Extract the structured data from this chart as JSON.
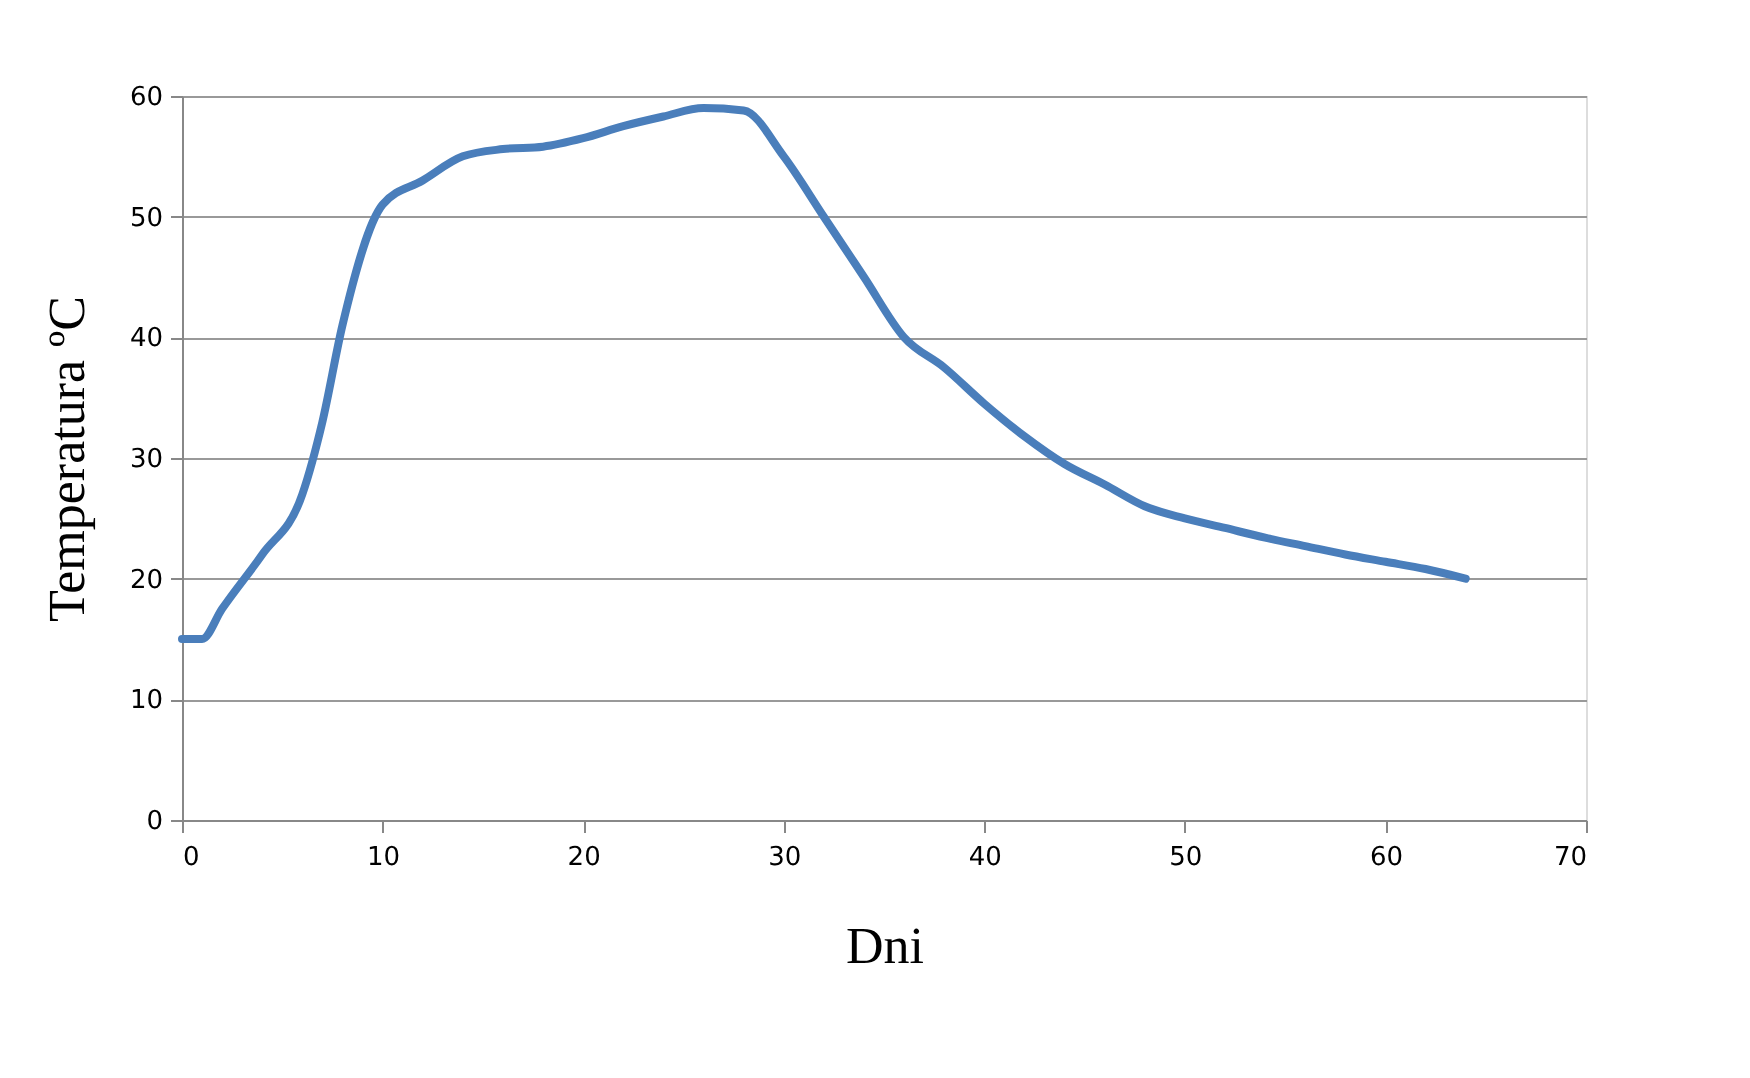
{
  "chart_data": {
    "type": "line",
    "xlabel": "Dni",
    "ylabel": "Temperatura ºC",
    "x": [
      0,
      1,
      2,
      4,
      6,
      7,
      8,
      10,
      12,
      14,
      16,
      18,
      20,
      22,
      24,
      26,
      28,
      30,
      32,
      34,
      36,
      38,
      40,
      42,
      44,
      46,
      48,
      50,
      52,
      54,
      56,
      58,
      60,
      62,
      64
    ],
    "series": [
      {
        "color": "#4a7ebb",
        "values": [
          15,
          15,
          17.5,
          22,
          27,
          33,
          41,
          51,
          53,
          55,
          55.6,
          55.8,
          56.5,
          57.5,
          58.3,
          59,
          58.8,
          55,
          50,
          45,
          40,
          37.5,
          34.5,
          31.8,
          29.5,
          27.8,
          26,
          25,
          24.2,
          23.4,
          22.7,
          22,
          21.4,
          20.8,
          20
        ]
      }
    ],
    "xlim": [
      0,
      70
    ],
    "xticks": [
      0,
      10,
      20,
      30,
      40,
      50,
      60,
      70
    ],
    "ylim": [
      0,
      60
    ],
    "yticks": [
      0,
      10,
      20,
      30,
      40,
      50,
      60
    ],
    "grid": "y",
    "marker": "none",
    "line_style": "solid"
  }
}
